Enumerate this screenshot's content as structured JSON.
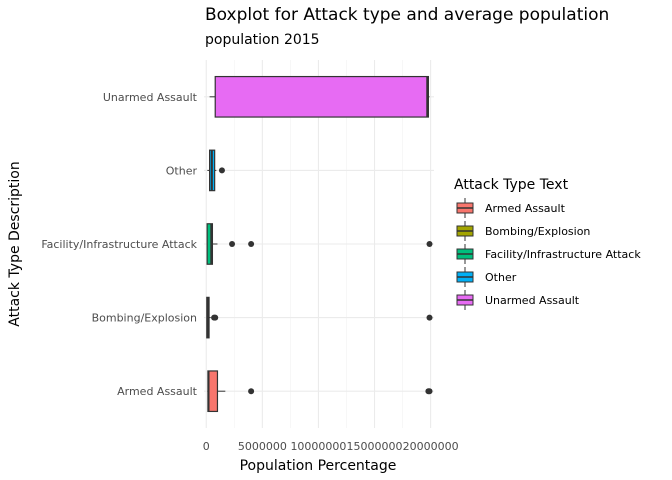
{
  "chart_data": {
    "type": "boxplot",
    "title": "Boxplot  for Attack type and average population",
    "subtitle": "population 2015",
    "xlabel": "Population Percentage",
    "ylabel": "Attack Type Description",
    "xlim": [
      -200000,
      20300000
    ],
    "x_ticks": [
      0,
      5000000,
      10000000,
      15000000,
      20000000
    ],
    "x_tick_labels": [
      "0",
      "5000000",
      "10000000",
      "15000000",
      "20000000"
    ],
    "categories": [
      "Armed Assault",
      "Bombing/Explosion",
      "Facility/Infrastructure Attack",
      "Other",
      "Unarmed Assault"
    ],
    "legend": {
      "title": "Attack Type Text",
      "position": "right",
      "entries": [
        "Armed Assault",
        "Bombing/Explosion",
        "Facility/Infrastructure Attack",
        "Other",
        "Unarmed Assault"
      ]
    },
    "grid": true,
    "series": [
      {
        "category": "Armed Assault",
        "color": "#F8766D",
        "min": 100000,
        "q1": 150000,
        "median": 200000,
        "q3": 1000000,
        "max": 1700000,
        "outliers": [
          4000000,
          19800000,
          19900000
        ]
      },
      {
        "category": "Bombing/Explosion",
        "color": "#A3A500",
        "min": 30000,
        "q1": 50000,
        "median": 150000,
        "q3": 250000,
        "max": 400000,
        "outliers": [
          700000,
          800000,
          19900000
        ]
      },
      {
        "category": "Facility/Infrastructure Attack",
        "color": "#00BF7D",
        "min": 30000,
        "q1": 80000,
        "median": 450000,
        "q3": 550000,
        "max": 1000000,
        "outliers": [
          2300000,
          4000000,
          19900000
        ]
      },
      {
        "category": "Other",
        "color": "#00B0F6",
        "min": 100000,
        "q1": 300000,
        "median": 500000,
        "q3": 750000,
        "max": 900000,
        "outliers": [
          1400000
        ]
      },
      {
        "category": "Unarmed Assault",
        "color": "#E76BF3",
        "min": 300000,
        "q1": 800000,
        "median": 19700000,
        "q3": 19800000,
        "max": 19900000,
        "outliers": []
      }
    ]
  }
}
